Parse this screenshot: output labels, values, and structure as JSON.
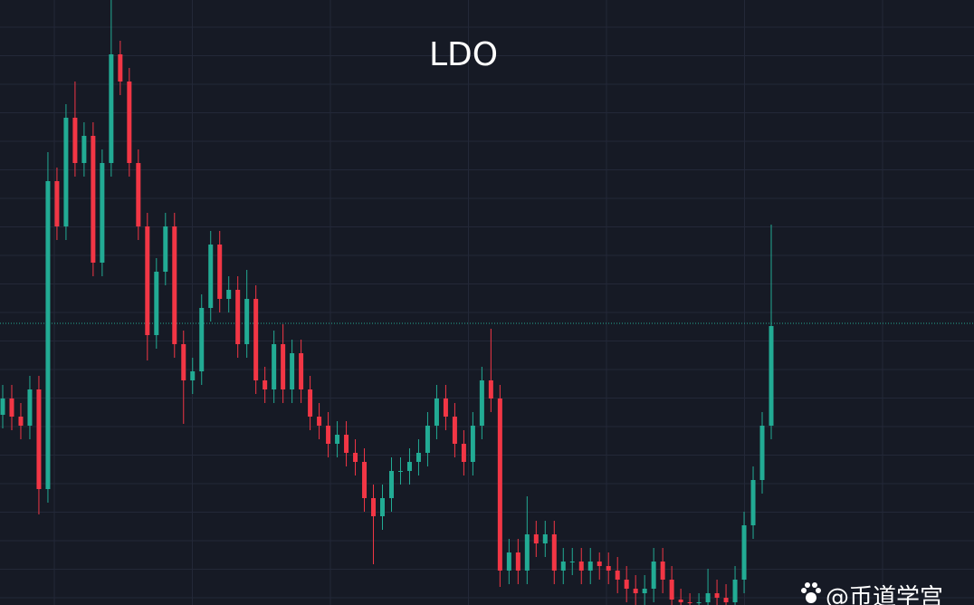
{
  "chart_data": {
    "type": "candlestick",
    "title": "LDO",
    "watermark": "@币道学宫",
    "ylim": [
      0,
      668
    ],
    "up_color": "#22ab94",
    "down_color": "#f23645",
    "price_line": 311,
    "open": [
      210,
      228,
      208,
      198,
      238,
      128,
      468,
      418,
      538,
      488,
      518,
      378,
      488,
      608,
      578,
      488,
      418,
      298,
      368,
      418,
      288,
      248,
      258,
      328,
      398,
      338,
      348,
      288,
      338,
      248,
      238,
      288,
      238,
      278,
      238,
      208,
      198,
      178,
      188,
      168,
      158,
      118,
      98,
      118,
      148,
      148,
      158,
      168,
      198,
      228,
      208,
      178,
      158,
      198,
      248,
      228,
      38,
      58,
      38,
      78,
      68,
      78,
      38,
      48,
      48,
      38,
      48,
      43,
      38,
      28,
      18,
      13,
      18,
      48,
      28,
      6,
      3,
      2,
      3,
      13,
      8,
      3,
      28,
      88,
      138,
      198
    ],
    "high": [
      243,
      243,
      223,
      253,
      253,
      500,
      483,
      553,
      578,
      533,
      533,
      503,
      668,
      623,
      593,
      503,
      433,
      383,
      433,
      433,
      303,
      273,
      343,
      413,
      413,
      363,
      363,
      370,
      353,
      263,
      303,
      310,
      293,
      293,
      253,
      223,
      213,
      203,
      203,
      183,
      173,
      133,
      133,
      163,
      163,
      173,
      183,
      213,
      243,
      243,
      223,
      193,
      213,
      263,
      305,
      243,
      73,
      73,
      120,
      93,
      93,
      93,
      63,
      63,
      63,
      63,
      58,
      58,
      53,
      43,
      33,
      33,
      63,
      63,
      43,
      18,
      13,
      13,
      40,
      28,
      23,
      43,
      103,
      153,
      213,
      420
    ],
    "low": [
      195,
      193,
      183,
      183,
      100,
      113,
      403,
      403,
      473,
      473,
      363,
      363,
      473,
      563,
      473,
      403,
      270,
      283,
      353,
      273,
      200,
      233,
      243,
      313,
      323,
      323,
      273,
      273,
      233,
      223,
      223,
      223,
      223,
      223,
      193,
      183,
      163,
      163,
      153,
      143,
      103,
      45,
      83,
      103,
      133,
      133,
      143,
      153,
      183,
      193,
      163,
      143,
      143,
      183,
      213,
      20,
      23,
      23,
      23,
      53,
      53,
      23,
      23,
      33,
      23,
      23,
      28,
      23,
      13,
      3,
      0,
      0,
      3,
      13,
      0,
      0,
      0,
      0,
      0,
      0,
      0,
      0,
      13,
      73,
      123,
      183
    ],
    "close": [
      228,
      208,
      198,
      238,
      128,
      468,
      418,
      538,
      488,
      518,
      378,
      488,
      608,
      578,
      488,
      418,
      298,
      368,
      418,
      288,
      248,
      258,
      328,
      398,
      338,
      348,
      288,
      338,
      248,
      238,
      288,
      238,
      278,
      238,
      208,
      198,
      178,
      188,
      168,
      158,
      118,
      98,
      118,
      148,
      148,
      158,
      168,
      198,
      228,
      208,
      178,
      158,
      198,
      248,
      228,
      38,
      58,
      38,
      78,
      68,
      78,
      38,
      48,
      48,
      38,
      48,
      43,
      38,
      28,
      18,
      13,
      18,
      48,
      28,
      6,
      3,
      2,
      3,
      13,
      8,
      3,
      28,
      88,
      138,
      198,
      308
    ]
  }
}
